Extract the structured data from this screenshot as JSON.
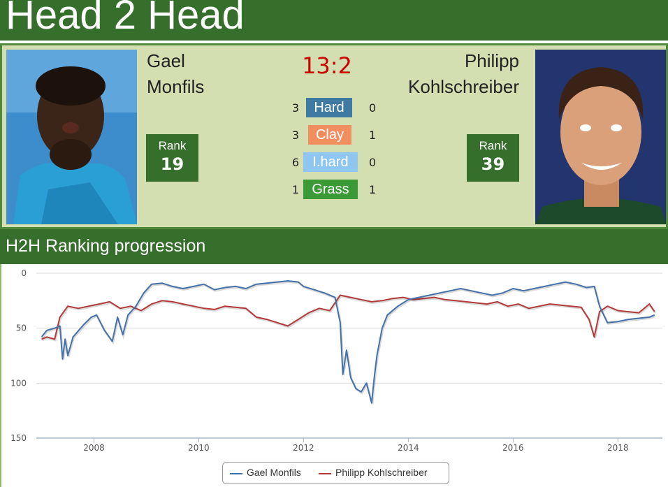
{
  "header": {
    "title": "Head 2 Head"
  },
  "players": {
    "left": {
      "name_line1": "Gael",
      "name_line2": "Monfils",
      "rank_label": "Rank",
      "rank": "19"
    },
    "right": {
      "name_line1": "Philipp",
      "name_line2": "Kohlschreiber",
      "rank_label": "Rank",
      "rank": "39"
    }
  },
  "score": "13:2",
  "surfaces": [
    {
      "label": "Hard",
      "left": "3",
      "right": "0",
      "color": "#3f7aa3"
    },
    {
      "label": "Clay",
      "left": "3",
      "right": "1",
      "color": "#f08e5f"
    },
    {
      "label": "I.hard",
      "left": "6",
      "right": "0",
      "color": "#8fc6f0"
    },
    {
      "label": "Grass",
      "left": "1",
      "right": "1",
      "color": "#3a9a36"
    }
  ],
  "section": {
    "title": "H2H Ranking progression"
  },
  "chart_data": {
    "type": "line",
    "title": "",
    "xlabel": "",
    "ylabel": "",
    "y_inverted": true,
    "ylim": [
      0,
      150
    ],
    "y_ticks": [
      "0",
      "50",
      "100",
      "150"
    ],
    "x_ticks": [
      "2008",
      "2010",
      "2012",
      "2014",
      "2016",
      "2018"
    ],
    "grid": true,
    "legend_position": "bottom-center",
    "series": [
      {
        "name": "Gael Monfils",
        "color": "#4472a8",
        "x": [
          2007.0,
          2007.1,
          2007.25,
          2007.35,
          2007.4,
          2007.45,
          2007.5,
          2007.6,
          2007.8,
          2007.95,
          2008.05,
          2008.2,
          2008.35,
          2008.45,
          2008.55,
          2008.65,
          2008.8,
          2008.95,
          2009.1,
          2009.3,
          2009.5,
          2009.7,
          2009.9,
          2010.1,
          2010.3,
          2010.5,
          2010.7,
          2010.9,
          2011.1,
          2011.3,
          2011.5,
          2011.7,
          2011.9,
          2012.0,
          2012.2,
          2012.4,
          2012.6,
          2012.7,
          2012.75,
          2012.82,
          2012.9,
          2013.0,
          2013.1,
          2013.2,
          2013.3,
          2013.35,
          2013.4,
          2013.5,
          2013.6,
          2013.8,
          2014.0,
          2014.2,
          2014.4,
          2014.6,
          2014.8,
          2015.0,
          2015.2,
          2015.4,
          2015.6,
          2015.8,
          2016.0,
          2016.2,
          2016.4,
          2016.6,
          2016.8,
          2017.0,
          2017.2,
          2017.4,
          2017.55,
          2017.65,
          2017.8,
          2018.0,
          2018.2,
          2018.4,
          2018.6,
          2018.7
        ],
        "values": [
          58,
          52,
          50,
          48,
          78,
          60,
          75,
          58,
          47,
          40,
          38,
          52,
          62,
          40,
          56,
          38,
          30,
          18,
          10,
          9,
          12,
          14,
          12,
          10,
          15,
          13,
          12,
          14,
          10,
          9,
          8,
          7,
          8,
          12,
          15,
          18,
          22,
          45,
          92,
          70,
          95,
          105,
          108,
          100,
          118,
          95,
          75,
          50,
          38,
          30,
          24,
          22,
          20,
          18,
          16,
          14,
          16,
          18,
          20,
          18,
          14,
          16,
          14,
          12,
          10,
          8,
          10,
          13,
          12,
          30,
          45,
          44,
          42,
          41,
          40,
          38
        ]
      },
      {
        "name": "Philipp Kohlschreiber",
        "color": "#b33a3a",
        "x": [
          2007.0,
          2007.1,
          2007.25,
          2007.35,
          2007.5,
          2007.7,
          2007.9,
          2008.1,
          2008.3,
          2008.5,
          2008.7,
          2008.9,
          2009.1,
          2009.3,
          2009.5,
          2009.7,
          2009.9,
          2010.1,
          2010.3,
          2010.5,
          2010.7,
          2010.9,
          2011.1,
          2011.3,
          2011.5,
          2011.7,
          2011.9,
          2012.1,
          2012.3,
          2012.5,
          2012.7,
          2012.9,
          2013.1,
          2013.3,
          2013.5,
          2013.7,
          2013.9,
          2014.1,
          2014.3,
          2014.5,
          2014.7,
          2014.9,
          2015.1,
          2015.3,
          2015.5,
          2015.7,
          2015.9,
          2016.1,
          2016.3,
          2016.5,
          2016.7,
          2016.9,
          2017.1,
          2017.3,
          2017.45,
          2017.55,
          2017.65,
          2017.8,
          2018.0,
          2018.2,
          2018.4,
          2018.6,
          2018.7
        ],
        "values": [
          60,
          58,
          60,
          40,
          30,
          32,
          30,
          28,
          26,
          32,
          30,
          34,
          28,
          25,
          26,
          28,
          30,
          32,
          33,
          30,
          31,
          32,
          40,
          42,
          45,
          48,
          42,
          36,
          32,
          34,
          20,
          22,
          24,
          26,
          25,
          23,
          22,
          24,
          23,
          22,
          24,
          25,
          26,
          27,
          28,
          26,
          30,
          28,
          32,
          30,
          28,
          29,
          30,
          31,
          42,
          58,
          35,
          30,
          34,
          35,
          36,
          28,
          35
        ]
      }
    ]
  }
}
